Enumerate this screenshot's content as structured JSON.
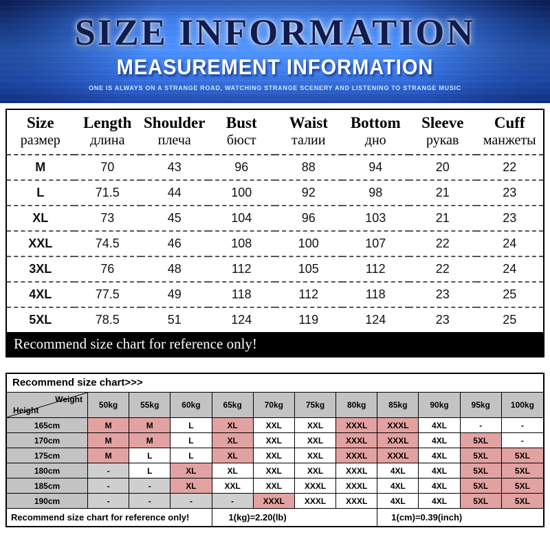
{
  "colors": {
    "hero_blue": "#2f7bff",
    "highlight_pink": "#e3a2a2",
    "header_gray": "#c3c3c3",
    "banner_black": "#000000"
  },
  "header": {
    "title": "SIZE INFORMATION",
    "subtitle": "MEASUREMENT INFORMATION",
    "tagline": "ONE IS ALWAYS ON A STRANGE ROAD, WATCHING STRANGE SCENERY AND LISTENING TO STRANGE MUSIC"
  },
  "size_table": {
    "columns": [
      {
        "en": "Size",
        "ru": "размер"
      },
      {
        "en": "Length",
        "ru": "длина"
      },
      {
        "en": "Shoulder",
        "ru": "плеча"
      },
      {
        "en": "Bust",
        "ru": "бюст"
      },
      {
        "en": "Waist",
        "ru": "талии"
      },
      {
        "en": "Bottom",
        "ru": "дно"
      },
      {
        "en": "Sleeve",
        "ru": "рукав"
      },
      {
        "en": "Cuff",
        "ru": "манжеты"
      }
    ],
    "rows": [
      [
        "M",
        "70",
        "43",
        "96",
        "88",
        "94",
        "20",
        "22"
      ],
      [
        "L",
        "71.5",
        "44",
        "100",
        "92",
        "98",
        "21",
        "23"
      ],
      [
        "XL",
        "73",
        "45",
        "104",
        "96",
        "103",
        "21",
        "23"
      ],
      [
        "XXL",
        "74.5",
        "46",
        "108",
        "100",
        "107",
        "22",
        "24"
      ],
      [
        "3XL",
        "76",
        "48",
        "112",
        "105",
        "112",
        "22",
        "24"
      ],
      [
        "4XL",
        "77.5",
        "49",
        "118",
        "112",
        "118",
        "23",
        "25"
      ],
      [
        "5XL",
        "78.5",
        "51",
        "124",
        "119",
        "124",
        "23",
        "25"
      ]
    ]
  },
  "notice_banner": "Recommend size chart for reference only!",
  "recommend_table": {
    "title": "Recommend size chart>>>",
    "corner": {
      "top": "Weight",
      "bottom": "Height"
    },
    "weight_columns": [
      "50kg",
      "55kg",
      "60kg",
      "65kg",
      "70kg",
      "75kg",
      "80kg",
      "85kg",
      "90kg",
      "95kg",
      "100kg"
    ],
    "rows": [
      {
        "height": "165cm",
        "cells": [
          "M",
          "M",
          "L",
          "XL",
          "XXL",
          "XXL",
          "XXXL",
          "XXXL",
          "4XL",
          "-",
          "-"
        ],
        "pink": [
          0,
          1,
          3,
          6,
          7
        ],
        "gray": []
      },
      {
        "height": "170cm",
        "cells": [
          "M",
          "M",
          "L",
          "XL",
          "XXL",
          "XXL",
          "XXXL",
          "XXXL",
          "4XL",
          "5XL",
          "-"
        ],
        "pink": [
          0,
          1,
          3,
          6,
          7,
          9
        ],
        "gray": []
      },
      {
        "height": "175cm",
        "cells": [
          "M",
          "L",
          "L",
          "XL",
          "XXL",
          "XXL",
          "XXXL",
          "XXXL",
          "4XL",
          "5XL",
          "5XL"
        ],
        "pink": [
          0,
          3,
          6,
          7,
          9,
          10
        ],
        "gray": []
      },
      {
        "height": "180cm",
        "cells": [
          "-",
          "L",
          "XL",
          "XL",
          "XXL",
          "XXL",
          "XXXL",
          "4XL",
          "4XL",
          "5XL",
          "5XL"
        ],
        "pink": [
          2,
          9,
          10
        ],
        "gray": [
          0
        ]
      },
      {
        "height": "185cm",
        "cells": [
          "-",
          "-",
          "XL",
          "XXL",
          "XXL",
          "XXXL",
          "XXXL",
          "4XL",
          "4XL",
          "5XL",
          "5XL"
        ],
        "pink": [
          2,
          9,
          10
        ],
        "gray": [
          0,
          1
        ]
      },
      {
        "height": "190cm",
        "cells": [
          "-",
          "-",
          "-",
          "-",
          "XXXL",
          "XXXL",
          "XXXL",
          "4XL",
          "4XL",
          "5XL",
          "5XL"
        ],
        "pink": [
          4,
          9,
          10
        ],
        "gray": [
          0,
          1,
          2,
          3
        ]
      }
    ],
    "footer": {
      "note": "Recommend size chart for reference only!",
      "kg_lb": "1(kg)=2.20(lb)",
      "cm_inch": "1(cm)=0.39(inch)"
    }
  }
}
